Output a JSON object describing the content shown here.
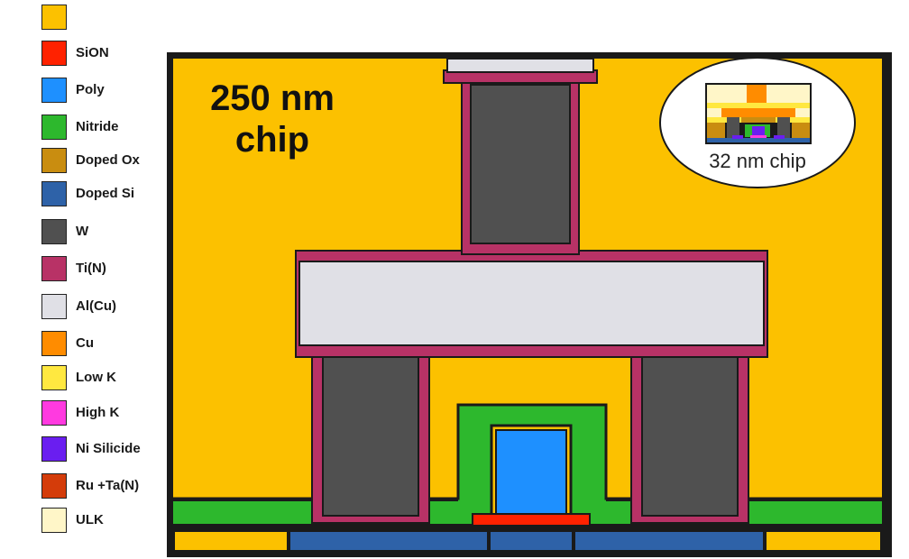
{
  "legend": [
    {
      "label": "",
      "color": "#fcc100"
    },
    {
      "label": "SiON",
      "color": "#ff2200"
    },
    {
      "label": "Poly",
      "color": "#1e90ff"
    },
    {
      "label": "Nitride",
      "color": "#2db82d"
    },
    {
      "label": "Doped Ox",
      "color": "#c98d10"
    },
    {
      "label": "Doped Si",
      "color": "#2e62a8"
    },
    {
      "label": "W",
      "color": "#505050"
    },
    {
      "label": "Ti(N)",
      "color": "#b83266"
    },
    {
      "label": "Al(Cu)",
      "color": "#e0e0e6"
    },
    {
      "label": "Cu",
      "color": "#ff8c00"
    },
    {
      "label": "Low K",
      "color": "#ffe840"
    },
    {
      "label": "High K",
      "color": "#ff3ae0"
    },
    {
      "label": "Ni Silicide",
      "color": "#6a1ef0"
    },
    {
      "label": "Ru +Ta(N)",
      "color": "#d43c0a"
    },
    {
      "label": "ULK",
      "color": "#fff6c8"
    }
  ],
  "main_chip": {
    "title_line1": "250 nm",
    "title_line2": "chip"
  },
  "inset": {
    "label": "32 nm chip"
  }
}
